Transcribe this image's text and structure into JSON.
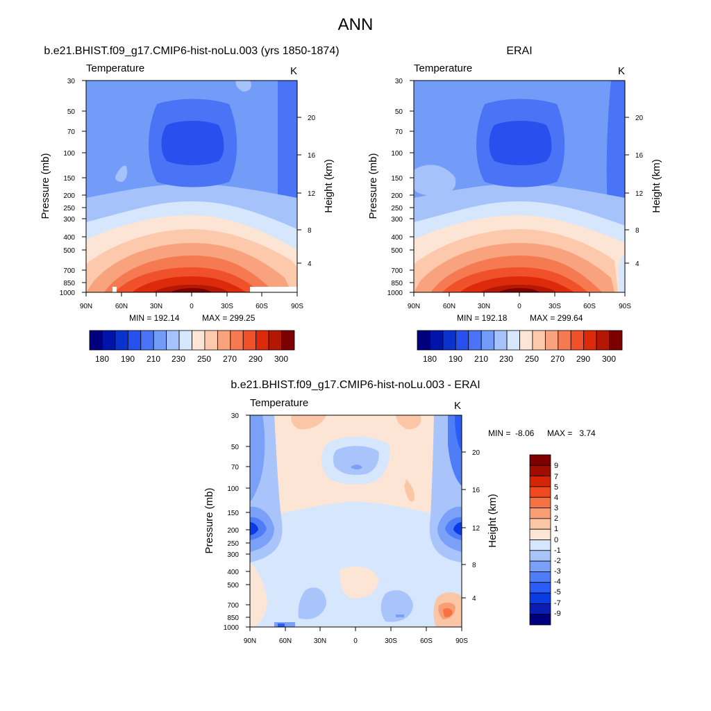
{
  "page_title": "ANN",
  "colors": {
    "abs_scale": [
      "#00007f",
      "#0014aa",
      "#0a32cd",
      "#2850ee",
      "#4a74f5",
      "#739cf8",
      "#a6c2fb",
      "#d6e6fd",
      "#fde5d6",
      "#fcc9ad",
      "#f8a27e",
      "#f57a52",
      "#f0502a",
      "#dc2a0a",
      "#b41804",
      "#7d0000"
    ],
    "diff_scale": [
      "#00007f",
      "#0a1eb4",
      "#0a3ce6",
      "#2b5cf5",
      "#4f7cf7",
      "#7aa0f8",
      "#a9c4fb",
      "#d5e6fd",
      "#fde5d6",
      "#fbc6a6",
      "#f89e74",
      "#f57245",
      "#f04a1e",
      "#d42606",
      "#a00c00",
      "#7d0000"
    ]
  },
  "chart_data": [
    {
      "type": "contour",
      "title": "b.e21.BHIST.f09_g17.CMIP6-hist-noLu.003 (yrs 1850-1874)",
      "variable": "Temperature",
      "units": "K",
      "xlabel": "",
      "ylabel": "Pressure (mb)",
      "ylabel_right": "Height (km)",
      "x_ticks": [
        "90N",
        "60N",
        "30N",
        "0",
        "30S",
        "60S",
        "90S"
      ],
      "y_ticks": [
        "30",
        "50",
        "70",
        "100",
        "150",
        "200",
        "250",
        "300",
        "400",
        "500",
        "700",
        "850",
        "1000"
      ],
      "y_right_ticks": [
        "20",
        "16",
        "12",
        "8",
        "4"
      ],
      "log_pressure_axis": true,
      "min_label": "MIN = 192.14",
      "max_label": "MAX = 299.25",
      "colorbar_labels": [
        "180",
        "190",
        "210",
        "230",
        "250",
        "270",
        "290",
        "300"
      ],
      "colorbar_levels": [
        180,
        185,
        190,
        200,
        210,
        220,
        230,
        240,
        250,
        260,
        270,
        280,
        290,
        295,
        300
      ]
    },
    {
      "type": "contour",
      "title": "ERAI",
      "variable": "Temperature",
      "units": "K",
      "xlabel": "",
      "ylabel": "Pressure (mb)",
      "ylabel_right": "Height (km)",
      "x_ticks": [
        "90N",
        "60N",
        "30N",
        "0",
        "30S",
        "60S",
        "90S"
      ],
      "y_ticks": [
        "30",
        "50",
        "70",
        "100",
        "150",
        "200",
        "250",
        "300",
        "400",
        "500",
        "700",
        "850",
        "1000"
      ],
      "y_right_ticks": [
        "20",
        "16",
        "12",
        "8",
        "4"
      ],
      "log_pressure_axis": true,
      "min_label": "MIN = 192.18",
      "max_label": "MAX = 299.64",
      "colorbar_labels": [
        "180",
        "190",
        "210",
        "230",
        "250",
        "270",
        "290",
        "300"
      ],
      "colorbar_levels": [
        180,
        185,
        190,
        200,
        210,
        220,
        230,
        240,
        250,
        260,
        270,
        280,
        290,
        295,
        300
      ]
    },
    {
      "type": "contour",
      "title": "b.e21.BHIST.f09_g17.CMIP6-hist-noLu.003 - ERAI",
      "variable": "Temperature",
      "units": "K",
      "xlabel": "",
      "ylabel": "Pressure (mb)",
      "ylabel_right": "Height (km)",
      "x_ticks": [
        "90N",
        "60N",
        "30N",
        "0",
        "30S",
        "60S",
        "90S"
      ],
      "y_ticks": [
        "30",
        "50",
        "70",
        "100",
        "150",
        "200",
        "250",
        "300",
        "400",
        "500",
        "700",
        "850",
        "1000"
      ],
      "y_right_ticks": [
        "20",
        "16",
        "12",
        "8",
        "4"
      ],
      "log_pressure_axis": true,
      "min_label": "MIN =  -8.06",
      "max_label": "MAX =   3.74",
      "colorbar_labels": [
        "9",
        "7",
        "5",
        "4",
        "3",
        "2",
        "1",
        "0",
        "-1",
        "-2",
        "-3",
        "-4",
        "-5",
        "-7",
        "-9"
      ],
      "colorbar_levels": [
        9,
        7,
        5,
        4,
        3,
        2,
        1,
        0,
        -1,
        -2,
        -3,
        -4,
        -5,
        -7,
        -9
      ]
    }
  ]
}
